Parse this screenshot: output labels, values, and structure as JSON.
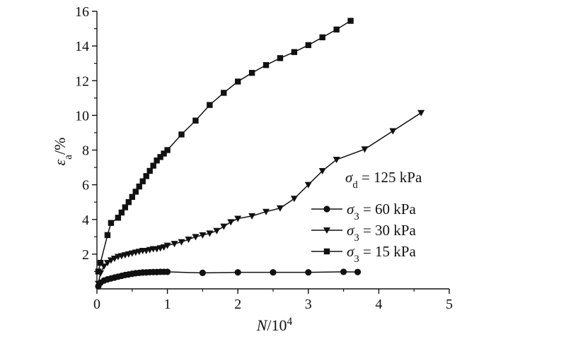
{
  "chart_data": {
    "type": "line",
    "title": "",
    "xlabel": {
      "var": "N",
      "rest": "/10",
      "sup": "4"
    },
    "ylabel": {
      "var": "ε",
      "sub": "a",
      "rest": "/%"
    },
    "xlim": [
      0,
      5
    ],
    "ylim": [
      0,
      16
    ],
    "xticks": [
      "0",
      "1",
      "2",
      "3",
      "4",
      "5"
    ],
    "yticks": [
      "2",
      "4",
      "6",
      "8",
      "10",
      "12",
      "14",
      "16"
    ],
    "annotation": {
      "var": "σ",
      "sub": "d",
      "rest": " = 125 kPa"
    },
    "series": [
      {
        "name": "60 kPa",
        "legend": {
          "var": "σ",
          "sub": "3",
          "rest": " = 60 kPa"
        },
        "marker": "circle",
        "x": [
          0.02,
          0.05,
          0.1,
          0.15,
          0.2,
          0.25,
          0.3,
          0.35,
          0.4,
          0.45,
          0.5,
          0.55,
          0.6,
          0.65,
          0.7,
          0.75,
          0.8,
          0.85,
          0.9,
          0.95,
          1.0,
          1.5,
          2.0,
          2.5,
          3.0,
          3.5,
          3.7
        ],
        "y": [
          0.15,
          0.35,
          0.48,
          0.55,
          0.6,
          0.65,
          0.7,
          0.75,
          0.8,
          0.83,
          0.87,
          0.9,
          0.92,
          0.94,
          0.95,
          0.96,
          0.97,
          0.97,
          0.98,
          0.98,
          0.98,
          0.92,
          0.95,
          0.95,
          0.95,
          0.98,
          0.97
        ]
      },
      {
        "name": "30 kPa",
        "legend": {
          "var": "σ",
          "sub": "3",
          "rest": " = 30 kPa"
        },
        "marker": "triangle-down",
        "x": [
          0.02,
          0.05,
          0.1,
          0.15,
          0.2,
          0.25,
          0.3,
          0.35,
          0.4,
          0.45,
          0.5,
          0.55,
          0.6,
          0.65,
          0.7,
          0.75,
          0.8,
          0.85,
          0.9,
          0.95,
          1.0,
          1.1,
          1.2,
          1.3,
          1.4,
          1.5,
          1.6,
          1.7,
          1.8,
          1.9,
          2.0,
          2.2,
          2.4,
          2.6,
          2.8,
          3.0,
          3.2,
          3.4,
          3.8,
          4.2,
          4.6
        ],
        "y": [
          0.3,
          0.9,
          1.3,
          1.5,
          1.65,
          1.75,
          1.85,
          1.9,
          1.95,
          2.0,
          2.05,
          2.1,
          2.15,
          2.2,
          2.2,
          2.25,
          2.3,
          2.3,
          2.35,
          2.4,
          2.5,
          2.6,
          2.7,
          2.85,
          3.0,
          3.1,
          3.2,
          3.35,
          3.6,
          3.85,
          4.05,
          4.2,
          4.45,
          4.65,
          5.2,
          6.0,
          6.8,
          7.45,
          8.05,
          9.1,
          10.15
        ]
      },
      {
        "name": "15 kPa",
        "legend": {
          "var": "σ",
          "sub": "3",
          "rest": " = 15 kPa"
        },
        "marker": "square",
        "x": [
          0.02,
          0.05,
          0.15,
          0.2,
          0.3,
          0.35,
          0.4,
          0.45,
          0.5,
          0.55,
          0.6,
          0.65,
          0.7,
          0.75,
          0.8,
          0.85,
          0.9,
          0.95,
          1.0,
          1.2,
          1.4,
          1.6,
          1.8,
          2.0,
          2.2,
          2.4,
          2.6,
          2.8,
          3.0,
          3.2,
          3.4,
          3.6
        ],
        "y": [
          1.0,
          1.5,
          3.1,
          3.8,
          4.1,
          4.4,
          4.7,
          5.0,
          5.3,
          5.6,
          5.9,
          6.2,
          6.5,
          6.8,
          7.1,
          7.4,
          7.6,
          7.8,
          8.0,
          8.9,
          9.7,
          10.6,
          11.3,
          11.95,
          12.45,
          12.9,
          13.3,
          13.65,
          14.05,
          14.5,
          14.95,
          15.45
        ]
      }
    ]
  }
}
